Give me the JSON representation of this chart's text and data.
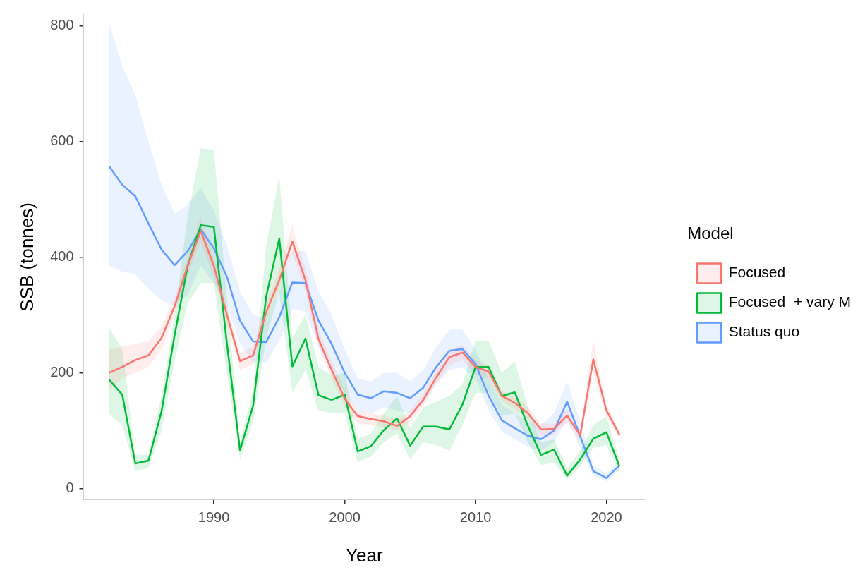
{
  "chart_data": {
    "type": "line",
    "xlabel": "Year",
    "ylabel": "SSB (tonnes)",
    "legend_title": "Model",
    "legend": "right",
    "grid": false,
    "marker": "none",
    "line_style": "solid",
    "x": [
      1982,
      1983,
      1984,
      1985,
      1986,
      1987,
      1988,
      1989,
      1990,
      1991,
      1992,
      1993,
      1994,
      1995,
      1996,
      1997,
      1998,
      1999,
      2000,
      2001,
      2002,
      2003,
      2004,
      2005,
      2006,
      2007,
      2008,
      2009,
      2010,
      2011,
      2012,
      2013,
      2014,
      2015,
      2016,
      2017,
      2018,
      2019,
      2020,
      2021
    ],
    "xlim": [
      1980.05,
      2022.95
    ],
    "xticks": [
      1990,
      2000,
      2010,
      2020
    ],
    "ylim": [
      -20,
      820
    ],
    "yticks": [
      0,
      200,
      400,
      600,
      800
    ],
    "series": [
      {
        "name": "Focused",
        "color": "#f8766d",
        "values": [
          200,
          210,
          222,
          230,
          260,
          315,
          385,
          445,
          385,
          300,
          220,
          230,
          305,
          360,
          427,
          360,
          258,
          205,
          155,
          125,
          120,
          116,
          108,
          125,
          153,
          192,
          227,
          235,
          210,
          202,
          160,
          148,
          130,
          102,
          103,
          126,
          92,
          223,
          135,
          93
        ],
        "upper": [
          240,
          245,
          250,
          255,
          280,
          330,
          400,
          470,
          400,
          315,
          235,
          245,
          320,
          380,
          455,
          380,
          275,
          220,
          170,
          135,
          130,
          126,
          118,
          135,
          163,
          202,
          240,
          248,
          222,
          212,
          170,
          158,
          140,
          112,
          112,
          138,
          100,
          255,
          145,
          100
        ],
        "lower": [
          170,
          190,
          200,
          210,
          240,
          300,
          370,
          425,
          365,
          285,
          205,
          215,
          290,
          345,
          405,
          340,
          245,
          190,
          140,
          112,
          110,
          106,
          100,
          115,
          143,
          182,
          212,
          222,
          198,
          190,
          150,
          138,
          120,
          92,
          94,
          115,
          82,
          200,
          125,
          85
        ]
      },
      {
        "name": "Focused  + vary M",
        "color": "#00ba38",
        "values": [
          188,
          162,
          43,
          48,
          133,
          265,
          385,
          455,
          452,
          250,
          66,
          143,
          332,
          432,
          211,
          259,
          161,
          153,
          162,
          64,
          73,
          101,
          121,
          74,
          107,
          107,
          102,
          145,
          210,
          210,
          160,
          166,
          108,
          58,
          67,
          22,
          50,
          86,
          97,
          38
        ],
        "upper": [
          278,
          240,
          58,
          58,
          160,
          300,
          470,
          588,
          585,
          330,
          80,
          170,
          420,
          540,
          260,
          300,
          210,
          195,
          200,
          85,
          95,
          130,
          160,
          105,
          140,
          150,
          160,
          180,
          255,
          255,
          200,
          220,
          140,
          80,
          85,
          35,
          65,
          110,
          125,
          50
        ],
        "lower": [
          128,
          110,
          30,
          35,
          100,
          220,
          320,
          355,
          355,
          200,
          50,
          115,
          260,
          340,
          165,
          205,
          135,
          130,
          130,
          45,
          55,
          80,
          95,
          50,
          80,
          75,
          65,
          110,
          165,
          165,
          125,
          130,
          80,
          40,
          45,
          15,
          38,
          70,
          75,
          30
        ]
      },
      {
        "name": "Status quo",
        "color": "#619cff",
        "values": [
          557,
          525,
          505,
          458,
          413,
          386,
          410,
          448,
          415,
          366,
          290,
          254,
          253,
          296,
          356,
          355,
          290,
          250,
          200,
          162,
          156,
          168,
          165,
          156,
          174,
          210,
          238,
          241,
          215,
          160,
          118,
          104,
          91,
          85,
          100,
          150,
          90,
          30,
          18,
          40
        ],
        "upper": [
          805,
          730,
          680,
          600,
          525,
          475,
          490,
          520,
          480,
          420,
          340,
          300,
          295,
          340,
          410,
          410,
          340,
          300,
          240,
          190,
          185,
          200,
          200,
          185,
          205,
          245,
          275,
          275,
          240,
          190,
          145,
          130,
          115,
          110,
          130,
          185,
          115,
          40,
          25,
          50
        ],
        "lower": [
          385,
          375,
          370,
          345,
          325,
          315,
          335,
          385,
          355,
          315,
          250,
          218,
          218,
          255,
          310,
          305,
          245,
          205,
          165,
          135,
          130,
          140,
          135,
          130,
          148,
          180,
          205,
          210,
          190,
          135,
          98,
          85,
          72,
          65,
          80,
          120,
          70,
          22,
          12,
          32
        ]
      }
    ]
  }
}
